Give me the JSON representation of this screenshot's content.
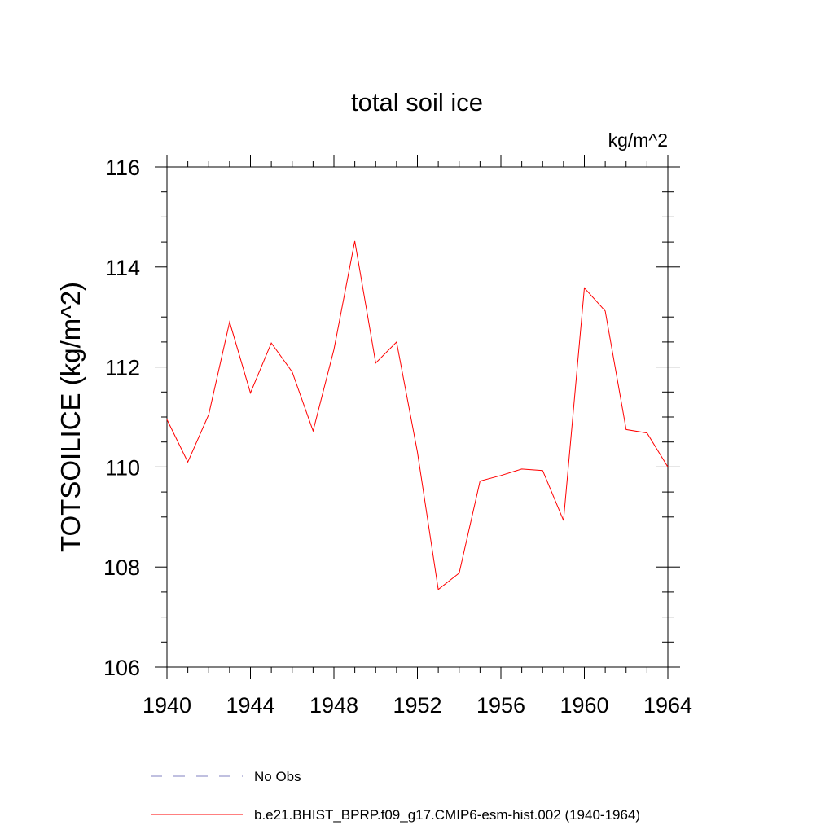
{
  "chart_data": {
    "type": "line",
    "title": "total soil ice",
    "units": "kg/m^2",
    "ylabel": "TOTSOILICE  (kg/m^2)",
    "xlabel": "",
    "xlim": [
      1940,
      1964
    ],
    "ylim": [
      106,
      116
    ],
    "x_major_ticks": [
      1940,
      1944,
      1948,
      1952,
      1956,
      1960,
      1964
    ],
    "x_tick_labels": [
      "1940",
      "1944",
      "1948",
      "1952",
      "1956",
      "1960",
      "1964"
    ],
    "x_minor_step": 1,
    "y_major_ticks": [
      106,
      108,
      110,
      112,
      114,
      116
    ],
    "y_tick_labels": [
      "106",
      "108",
      "110",
      "112",
      "114",
      "116"
    ],
    "y_minor_step": 0.5,
    "grid": false,
    "legend_position": "bottom",
    "series": [
      {
        "name": "b.e21.BHIST_BPRP.f09_g17.CMIP6-esm-hist.002 (1940-1964)",
        "color": "#ff0000",
        "dash": "solid",
        "x": [
          1940,
          1941,
          1942,
          1943,
          1944,
          1945,
          1946,
          1947,
          1948,
          1949,
          1950,
          1951,
          1952,
          1953,
          1954,
          1955,
          1956,
          1957,
          1958,
          1959,
          1960,
          1961,
          1962,
          1963,
          1964
        ],
        "y": [
          110.95,
          110.1,
          111.05,
          112.9,
          111.48,
          112.48,
          111.9,
          110.72,
          112.35,
          114.52,
          112.08,
          112.5,
          110.3,
          107.55,
          107.88,
          109.72,
          109.83,
          109.96,
          109.93,
          108.93,
          113.58,
          113.12,
          110.75,
          110.68,
          110.0
        ]
      },
      {
        "name": "No Obs",
        "color": "#8080c0",
        "dash": "dashed",
        "x": [],
        "y": []
      }
    ]
  }
}
